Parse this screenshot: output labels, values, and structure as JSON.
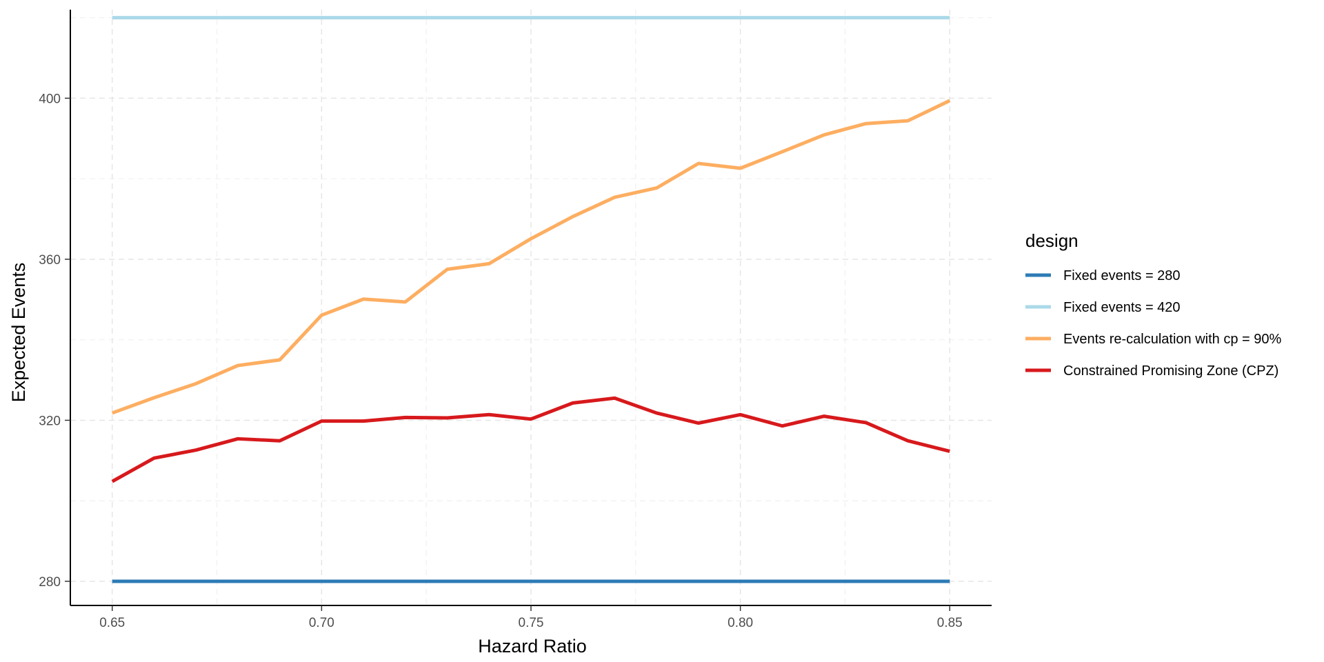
{
  "chart_data": {
    "type": "line",
    "title": "",
    "xlabel": "Hazard Ratio",
    "ylabel": "Expected Events",
    "xlim": [
      0.64,
      0.86
    ],
    "ylim": [
      274,
      422
    ],
    "x_ticks": [
      0.65,
      0.7,
      0.75,
      0.8,
      0.85
    ],
    "x_tick_labels": [
      "0.65",
      "0.70",
      "0.75",
      "0.80",
      "0.85"
    ],
    "y_ticks": [
      280,
      320,
      360,
      400
    ],
    "y_tick_labels": [
      "280",
      "320",
      "360",
      "400"
    ],
    "grid": true,
    "legend": {
      "title": "design",
      "position": "right"
    },
    "x": [
      0.65,
      0.66,
      0.67,
      0.68,
      0.69,
      0.7,
      0.71,
      0.72,
      0.73,
      0.74,
      0.75,
      0.76,
      0.77,
      0.78,
      0.79,
      0.8,
      0.81,
      0.82,
      0.83,
      0.84,
      0.85
    ],
    "series": [
      {
        "name": "Fixed events = 280",
        "color": "#2c7bb6",
        "values": [
          280,
          280,
          280,
          280,
          280,
          280,
          280,
          280,
          280,
          280,
          280,
          280,
          280,
          280,
          280,
          280,
          280,
          280,
          280,
          280,
          280
        ]
      },
      {
        "name": "Fixed events = 420",
        "color": "#abd9e9",
        "values": [
          420,
          420,
          420,
          420,
          420,
          420,
          420,
          420,
          420,
          420,
          420,
          420,
          420,
          420,
          420,
          420,
          420,
          420,
          420,
          420,
          420
        ]
      },
      {
        "name": "Events re-calculation with cp = 90%",
        "color": "#fdae61",
        "values": [
          321.8,
          325.6,
          329.1,
          333.6,
          335.0,
          346.1,
          350.1,
          349.4,
          357.5,
          358.9,
          365.1,
          370.6,
          375.4,
          377.7,
          383.8,
          382.6,
          386.7,
          390.9,
          393.7,
          394.4,
          399.4
        ]
      },
      {
        "name": "Constrained Promising Zone (CPZ)",
        "color": "#d7191c",
        "values": [
          304.8,
          310.6,
          312.6,
          315.4,
          314.9,
          319.8,
          319.8,
          320.7,
          320.6,
          321.4,
          320.3,
          324.3,
          325.5,
          321.8,
          319.3,
          321.4,
          318.6,
          321.0,
          319.4,
          314.9,
          312.3
        ]
      }
    ]
  }
}
